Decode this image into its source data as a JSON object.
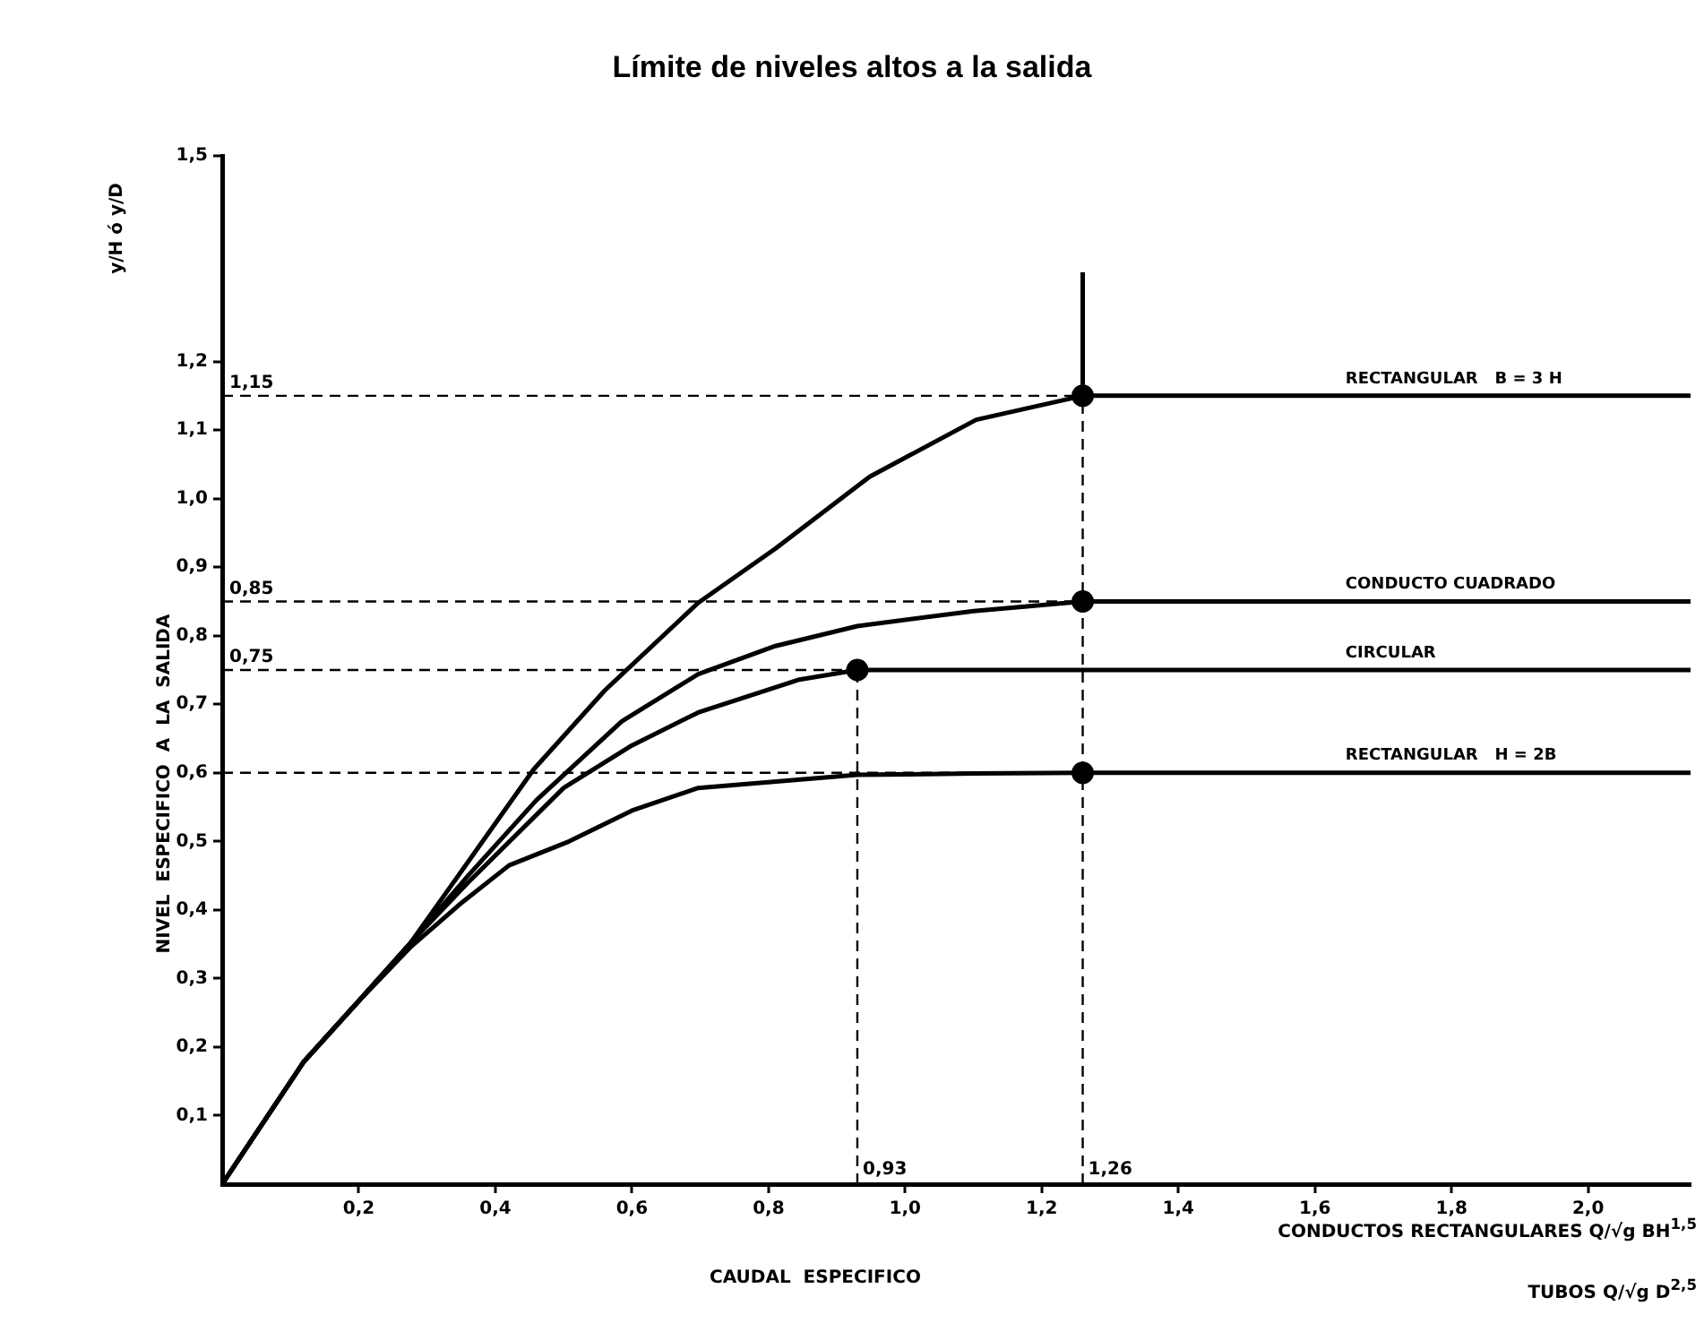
{
  "chart_data": {
    "type": "line",
    "title": "Límite de niveles altos a la salida",
    "xlabel": "CAUDAL  ESPECIFICO",
    "ylabel": "NIVEL  ESPECIFICO  A  LA  SALIDA",
    "annotations": [
      "y/H ó y/D",
      "CONDUCTOS RECTANGULARES Q/√g BH$^{1,5}$",
      "TUBOS Q/√g D$^{2,5}$"
    ],
    "xlim": [
      0,
      2.15
    ],
    "ylim": [
      0,
      1.5
    ],
    "xticks": [
      {
        "value": 0.2,
        "label": "0,2"
      },
      {
        "value": 0.4,
        "label": "0,4"
      },
      {
        "value": 0.6,
        "label": "0,6"
      },
      {
        "value": 0.8,
        "label": "0,8"
      },
      {
        "value": 1.0,
        "label": "1,0"
      },
      {
        "value": 1.2,
        "label": "1,2"
      },
      {
        "value": 1.4,
        "label": "1,4"
      },
      {
        "value": 1.6,
        "label": "1,6"
      },
      {
        "value": 1.8,
        "label": "1,8"
      },
      {
        "value": 2.0,
        "label": "2,0"
      }
    ],
    "yticks": [
      {
        "value": 0.1,
        "label": "0,1"
      },
      {
        "value": 0.2,
        "label": "0,2"
      },
      {
        "value": 0.3,
        "label": "0,3"
      },
      {
        "value": 0.4,
        "label": "0,4"
      },
      {
        "value": 0.5,
        "label": "0,5"
      },
      {
        "value": 0.6,
        "label": "0,6"
      },
      {
        "value": 0.7,
        "label": "0,7"
      },
      {
        "value": 0.8,
        "label": "0,8"
      },
      {
        "value": 0.9,
        "label": "0,9"
      },
      {
        "value": 1.0,
        "label": "1,0"
      },
      {
        "value": 1.1,
        "label": "1,1"
      },
      {
        "value": 1.2,
        "label": "1,2"
      },
      {
        "value": 1.5,
        "label": "1,5"
      }
    ],
    "grid": false,
    "legend": false,
    "marker": "none",
    "line_style": "solid",
    "series": [
      {
        "name": "RECTANGULAR   B = 3 H",
        "color": "#000000",
        "x": [
          0,
          0.119,
          0.197,
          0.275,
          0.36,
          0.456,
          0.56,
          0.697,
          0.81,
          0.948,
          1.104,
          1.26,
          2.15
        ],
        "values": [
          0,
          0.178,
          0.264,
          0.351,
          0.47,
          0.605,
          0.72,
          0.848,
          0.927,
          1.032,
          1.115,
          1.15,
          1.15
        ]
      },
      {
        "name": "CONDUCTO CUADRADO",
        "color": "#000000",
        "x": [
          0,
          0.119,
          0.197,
          0.275,
          0.36,
          0.46,
          0.585,
          0.697,
          0.81,
          0.93,
          1.1,
          1.26,
          2.15
        ],
        "values": [
          0,
          0.178,
          0.264,
          0.351,
          0.45,
          0.56,
          0.675,
          0.744,
          0.785,
          0.814,
          0.836,
          0.85,
          0.85
        ]
      },
      {
        "name": "CIRCULAR",
        "color": "#000000",
        "x": [
          0,
          0.119,
          0.197,
          0.275,
          0.36,
          0.5,
          0.6,
          0.697,
          0.845,
          0.93,
          2.15
        ],
        "values": [
          0,
          0.178,
          0.264,
          0.351,
          0.44,
          0.578,
          0.64,
          0.688,
          0.736,
          0.75,
          0.75
        ]
      },
      {
        "name": "RECTANGULAR   H = 2B",
        "color": "#000000",
        "x": [
          0,
          0.119,
          0.197,
          0.275,
          0.35,
          0.42,
          0.508,
          0.6,
          0.697,
          0.93,
          1.1,
          1.26,
          2.15
        ],
        "values": [
          0,
          0.178,
          0.264,
          0.345,
          0.41,
          0.465,
          0.5,
          0.545,
          0.578,
          0.597,
          0.599,
          0.6,
          0.6
        ]
      },
      {
        "type": "line",
        "color": "#000000",
        "x": [
          1.26,
          1.26
        ],
        "values": [
          1.15,
          1.33
        ]
      },
      {
        "type": "scatter",
        "marker": "circle",
        "color": "#000000",
        "x": [
          1.26,
          1.26,
          0.93,
          1.26
        ],
        "values": [
          1.15,
          0.85,
          0.75,
          0.6
        ]
      }
    ],
    "ref_lines": [
      {
        "axis": "y",
        "value": 1.15,
        "label": "1,15",
        "line_style": "dashed"
      },
      {
        "axis": "y",
        "value": 0.85,
        "label": "0,85",
        "line_style": "dashed"
      },
      {
        "axis": "y",
        "value": 0.75,
        "label": "0,75",
        "line_style": "dashed"
      },
      {
        "axis": "y",
        "value": 0.6,
        "line_style": "dashed"
      },
      {
        "axis": "x",
        "value": 0.93,
        "label": "0,93",
        "line_style": "dashed"
      },
      {
        "axis": "x",
        "value": 1.26,
        "label": "1,26",
        "line_style": "dashed"
      }
    ]
  }
}
